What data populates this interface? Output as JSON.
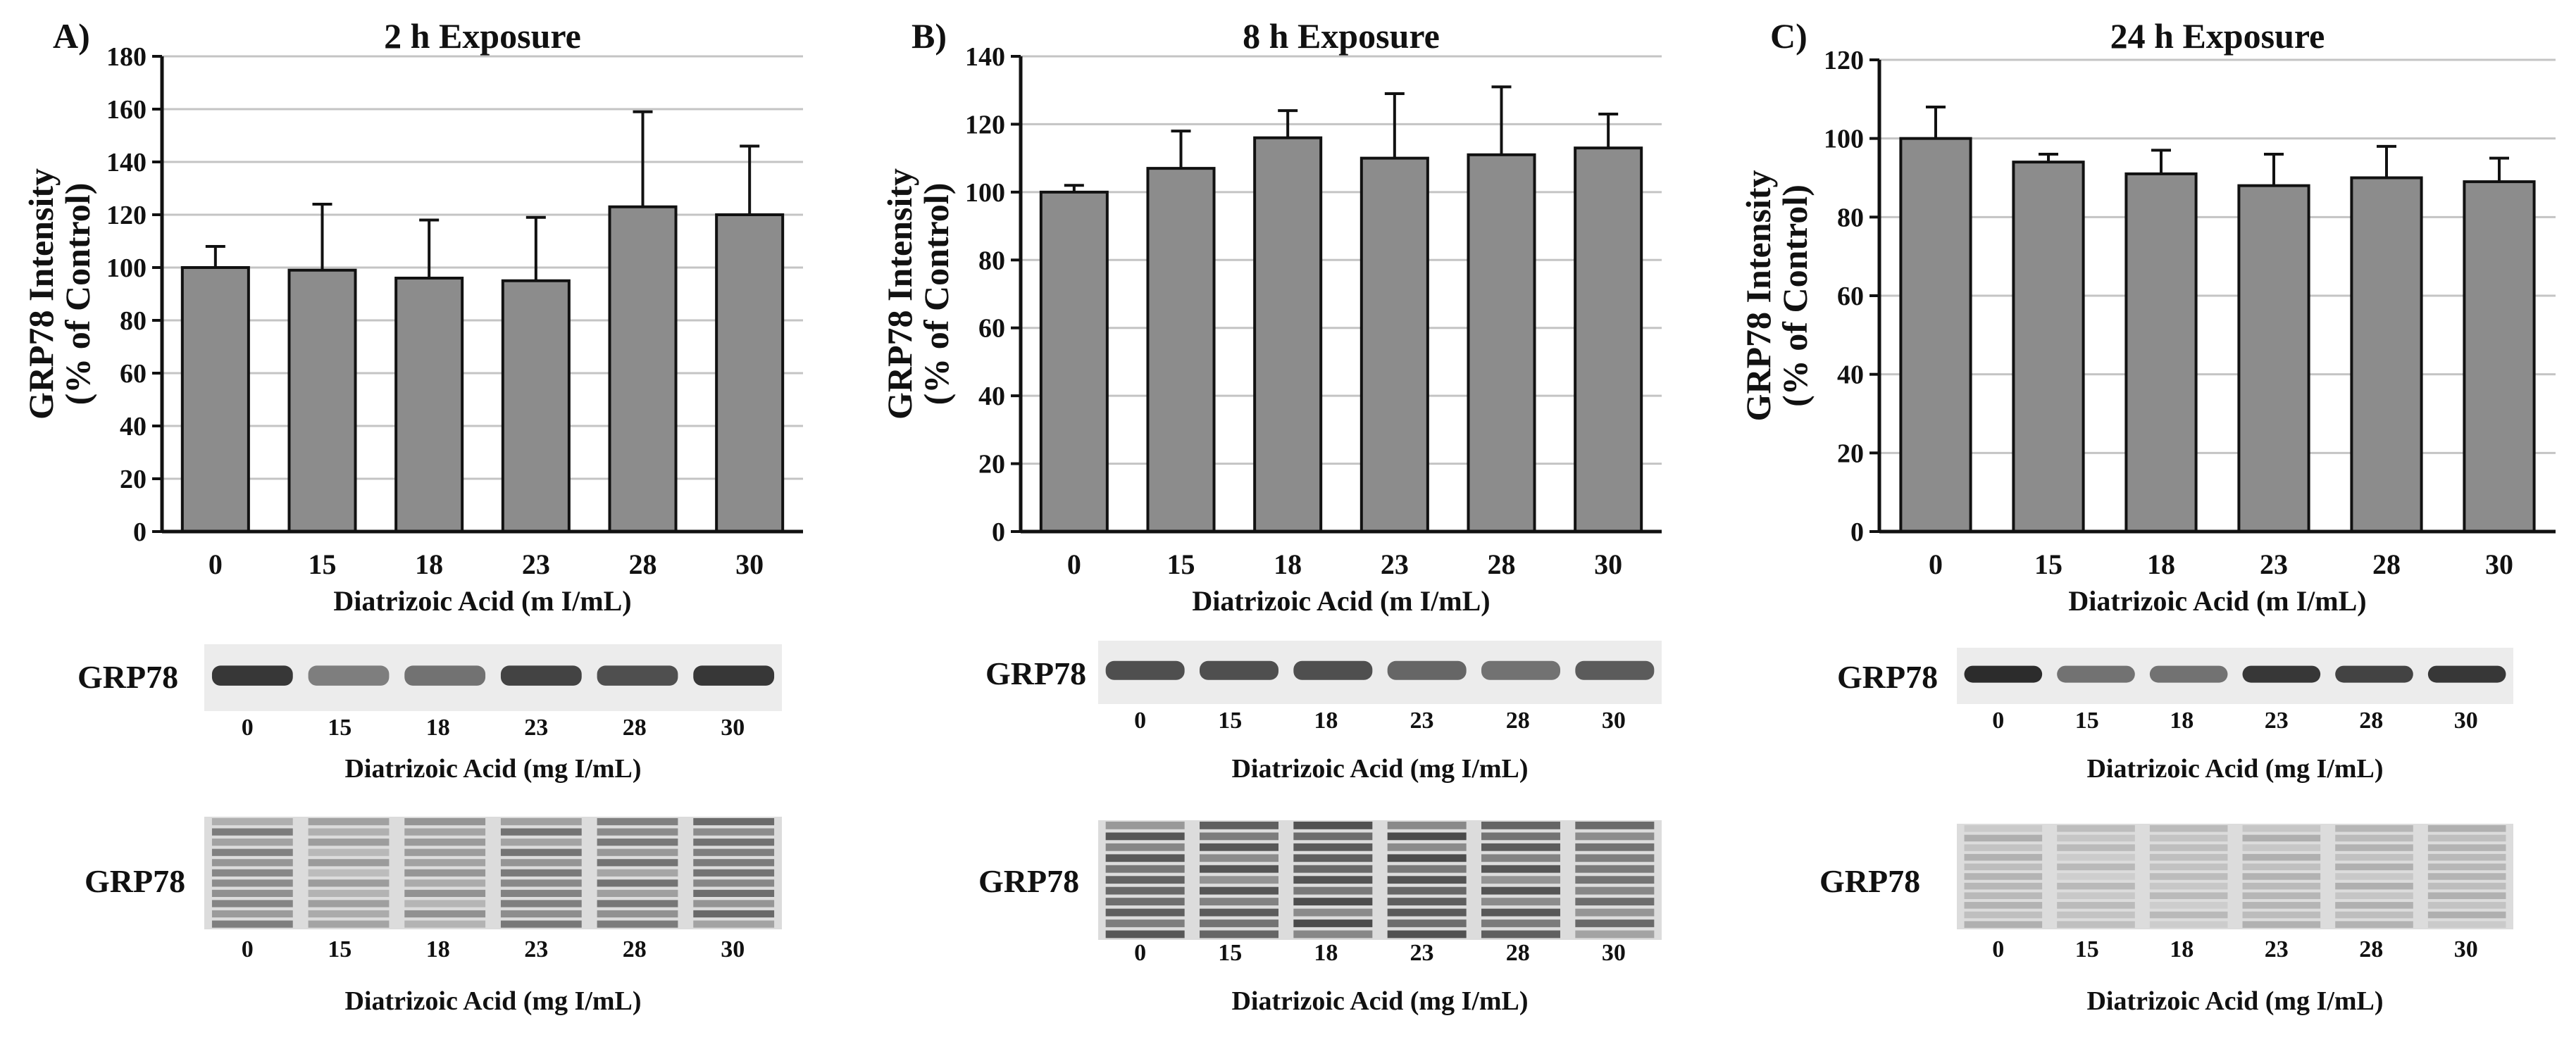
{
  "chart_data": [
    {
      "panel_letter": "A)",
      "type": "bar",
      "title": "2 h Exposure",
      "ylabel_line1": "GRP78 Intensity",
      "ylabel_line2": "(% of Control)",
      "xlabel": "Diatrizoic Acid (m I/mL)",
      "categories": [
        "0",
        "15",
        "18",
        "23",
        "28",
        "30"
      ],
      "values": [
        100,
        99,
        96,
        95,
        123,
        120
      ],
      "error_upper": [
        108,
        124,
        118,
        119,
        159,
        146
      ],
      "ylim": [
        0,
        180
      ],
      "yticks": [
        0,
        20,
        40,
        60,
        80,
        100,
        120,
        140,
        160,
        180
      ],
      "grid": true,
      "bar_color": "#8c8c8c",
      "blots": [
        {
          "label": "GRP78",
          "lanes": [
            "0",
            "15",
            "18",
            "23",
            "28",
            "30"
          ],
          "xlabel": "Diatrizoic Acid (mg I/mL)",
          "band_intensity": [
            0.85,
            0.55,
            0.6,
            0.8,
            0.75,
            0.85
          ],
          "style": "band"
        },
        {
          "label": "GRP78",
          "lanes": [
            "0",
            "15",
            "18",
            "23",
            "28",
            "30"
          ],
          "xlabel": "Diatrizoic Acid (mg I/mL)",
          "band_intensity": [
            0.55,
            0.4,
            0.45,
            0.6,
            0.6,
            0.65
          ],
          "style": "total"
        }
      ]
    },
    {
      "panel_letter": "B)",
      "type": "bar",
      "title": "8 h Exposure",
      "ylabel_line1": "GRP78 Intensity",
      "ylabel_line2": "(% of Control)",
      "xlabel": "Diatrizoic Acid (m I/mL)",
      "categories": [
        "0",
        "15",
        "18",
        "23",
        "28",
        "30"
      ],
      "values": [
        100,
        107,
        116,
        110,
        111,
        113
      ],
      "error_upper": [
        102,
        118,
        124,
        129,
        131,
        123
      ],
      "ylim": [
        0,
        140
      ],
      "yticks": [
        0,
        20,
        40,
        60,
        80,
        100,
        120,
        140
      ],
      "grid": true,
      "bar_color": "#8c8c8c",
      "blots": [
        {
          "label": "GRP78",
          "lanes": [
            "0",
            "15",
            "18",
            "23",
            "28",
            "30"
          ],
          "xlabel": "Diatrizoic Acid (mg I/mL)",
          "band_intensity": [
            0.75,
            0.75,
            0.75,
            0.65,
            0.6,
            0.7
          ],
          "style": "band"
        },
        {
          "label": "GRP78",
          "lanes": [
            "0",
            "15",
            "18",
            "23",
            "28",
            "30"
          ],
          "xlabel": "Diatrizoic Acid (mg I/mL)",
          "band_intensity": [
            0.75,
            0.75,
            0.8,
            0.8,
            0.75,
            0.65
          ],
          "style": "total"
        }
      ]
    },
    {
      "panel_letter": "C)",
      "type": "bar",
      "title": "24 h Exposure",
      "ylabel_line1": "GRP78 Intensity",
      "ylabel_line2": "(% of Control)",
      "xlabel": "Diatrizoic Acid (m I/mL)",
      "categories": [
        "0",
        "15",
        "18",
        "23",
        "28",
        "30"
      ],
      "values": [
        100,
        94,
        91,
        88,
        90,
        89
      ],
      "error_upper": [
        108,
        96,
        97,
        96,
        98,
        95
      ],
      "ylim": [
        0,
        120
      ],
      "yticks": [
        0,
        20,
        40,
        60,
        80,
        100,
        120
      ],
      "grid": true,
      "bar_color": "#8c8c8c",
      "blots": [
        {
          "label": "GRP78",
          "lanes": [
            "0",
            "15",
            "18",
            "23",
            "28",
            "30"
          ],
          "xlabel": "Diatrizoic Acid (mg I/mL)",
          "band_intensity": [
            0.9,
            0.6,
            0.6,
            0.85,
            0.8,
            0.85
          ],
          "style": "band"
        },
        {
          "label": "GRP78",
          "lanes": [
            "0",
            "15",
            "18",
            "23",
            "28",
            "30"
          ],
          "xlabel": "Diatrizoic Acid (mg I/mL)",
          "band_intensity": [
            0.3,
            0.25,
            0.25,
            0.3,
            0.3,
            0.3
          ],
          "style": "total"
        }
      ]
    }
  ]
}
